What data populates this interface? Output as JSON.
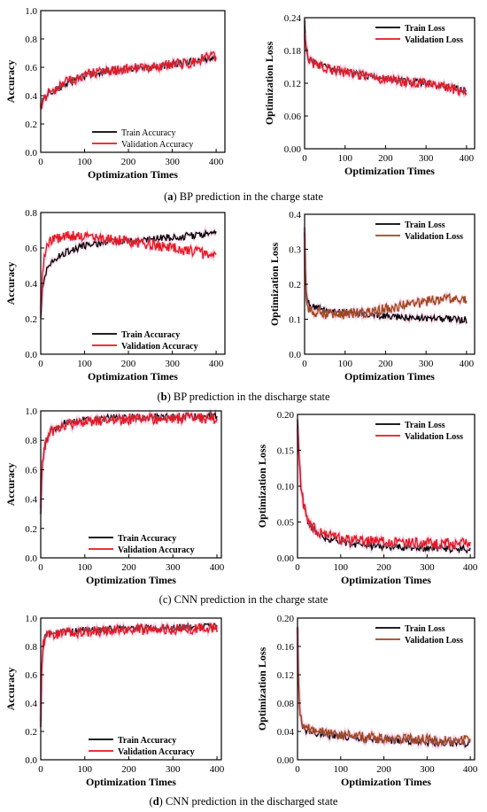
{
  "colors": {
    "train": "#000000",
    "validation_red": "#e8141c",
    "validation_brown": "#a0461a",
    "glow": "#f0a6cf"
  },
  "captions": [
    {
      "letter": "a",
      "text": " BP prediction in the charge state"
    },
    {
      "letter": "b",
      "text": " BP prediction in the discharge state"
    },
    {
      "letter": "c",
      "text": "CNN prediction in the charge state"
    },
    {
      "letter": "d",
      "text": " CNN prediction in the discharged state"
    }
  ],
  "chart_data": [
    {
      "type": "line",
      "panel": "a-left",
      "xlabel": "Optimization Times",
      "ylabel": "Accuracy",
      "xlim": [
        0,
        420
      ],
      "ylim": [
        0,
        1.0
      ],
      "xticks": [
        "0",
        "100",
        "200",
        "300",
        "400"
      ],
      "yticks": [
        "0.0",
        "0.2",
        "0.4",
        "0.6",
        "0.8",
        "1.0"
      ],
      "legend_position": "bottom-right",
      "legend_style": "mono",
      "series": [
        {
          "name": "Train Accuracy",
          "color": "#000000",
          "x": [
            0,
            5,
            20,
            40,
            60,
            80,
            100,
            140,
            180,
            220,
            260,
            300,
            340,
            380,
            400
          ],
          "y": [
            0.3,
            0.38,
            0.42,
            0.45,
            0.48,
            0.52,
            0.54,
            0.57,
            0.58,
            0.6,
            0.6,
            0.62,
            0.64,
            0.66,
            0.68
          ]
        },
        {
          "name": "Validation Accuracy",
          "color": "#e8141c",
          "x": [
            0,
            5,
            20,
            40,
            60,
            80,
            100,
            140,
            180,
            220,
            260,
            300,
            340,
            380,
            400
          ],
          "y": [
            0.32,
            0.37,
            0.43,
            0.46,
            0.5,
            0.52,
            0.55,
            0.57,
            0.58,
            0.6,
            0.6,
            0.62,
            0.63,
            0.67,
            0.68
          ]
        }
      ]
    },
    {
      "type": "line",
      "panel": "a-right",
      "xlabel": "Optimization Times",
      "ylabel": "Optimization Loss",
      "xlim": [
        0,
        420
      ],
      "ylim": [
        0,
        0.24
      ],
      "xticks": [
        "0",
        "100",
        "200",
        "300",
        "400"
      ],
      "yticks": [
        "0.00",
        "0.06",
        "0.12",
        "0.18",
        "0.24"
      ],
      "legend_position": "top-right",
      "legend_style": "bold",
      "series": [
        {
          "name": "Train Loss",
          "color": "#000000",
          "x": [
            0,
            3,
            10,
            30,
            60,
            100,
            150,
            200,
            250,
            300,
            350,
            400
          ],
          "y": [
            0.23,
            0.19,
            0.163,
            0.155,
            0.148,
            0.14,
            0.135,
            0.128,
            0.124,
            0.12,
            0.115,
            0.105
          ]
        },
        {
          "name": "Validation Loss",
          "color": "#e8141c",
          "x": [
            0,
            3,
            10,
            30,
            60,
            100,
            150,
            200,
            250,
            300,
            350,
            400
          ],
          "y": [
            0.22,
            0.18,
            0.162,
            0.152,
            0.146,
            0.139,
            0.134,
            0.127,
            0.123,
            0.119,
            0.114,
            0.1
          ]
        }
      ]
    },
    {
      "type": "line",
      "panel": "b-left",
      "xlabel": "Optimization Times",
      "ylabel": "Accuracy",
      "xlim": [
        0,
        420
      ],
      "ylim": [
        0,
        0.8
      ],
      "xticks": [
        "0",
        "100",
        "200",
        "300",
        "400"
      ],
      "yticks": [
        "0.0",
        "0.2",
        "0.4",
        "0.6",
        "0.8"
      ],
      "legend_position": "bottom-right",
      "legend_style": "bold",
      "series": [
        {
          "name": "Train Accuracy",
          "color": "#000000",
          "x": [
            0,
            5,
            15,
            30,
            60,
            100,
            150,
            200,
            250,
            300,
            350,
            400
          ],
          "y": [
            0.22,
            0.4,
            0.48,
            0.53,
            0.58,
            0.61,
            0.63,
            0.64,
            0.65,
            0.66,
            0.67,
            0.69
          ]
        },
        {
          "name": "Validation Accuracy",
          "color": "#e8141c",
          "x": [
            0,
            5,
            15,
            30,
            60,
            100,
            150,
            200,
            250,
            300,
            350,
            400
          ],
          "y": [
            0.25,
            0.5,
            0.62,
            0.65,
            0.67,
            0.66,
            0.65,
            0.64,
            0.62,
            0.6,
            0.58,
            0.55
          ]
        }
      ]
    },
    {
      "type": "line",
      "panel": "b-right",
      "xlabel": "Optimization Times",
      "ylabel": "Optimization Loss",
      "xlim": [
        0,
        420
      ],
      "ylim": [
        0,
        0.4
      ],
      "xticks": [
        "0",
        "100",
        "200",
        "300",
        "400"
      ],
      "yticks": [
        "0.0",
        "0.1",
        "0.2",
        "0.3",
        "0.4"
      ],
      "legend_position": "top-right",
      "legend_style": "bold",
      "series": [
        {
          "name": "Train Loss",
          "color": "#000000",
          "x": [
            0,
            3,
            8,
            20,
            50,
            100,
            150,
            200,
            250,
            300,
            350,
            400
          ],
          "y": [
            0.34,
            0.2,
            0.15,
            0.135,
            0.125,
            0.12,
            0.115,
            0.11,
            0.105,
            0.102,
            0.1,
            0.098
          ]
        },
        {
          "name": "Validation Loss",
          "color": "#a0461a",
          "x": [
            0,
            3,
            8,
            20,
            50,
            100,
            150,
            200,
            250,
            300,
            350,
            400
          ],
          "y": [
            0.36,
            0.18,
            0.13,
            0.12,
            0.115,
            0.115,
            0.12,
            0.13,
            0.14,
            0.15,
            0.16,
            0.16
          ]
        }
      ]
    },
    {
      "type": "line",
      "panel": "c-left",
      "xlabel": "Optimization Times",
      "ylabel": "Accuracy",
      "xlim": [
        0,
        410
      ],
      "ylim": [
        0,
        1.0
      ],
      "xticks": [
        "0",
        "100",
        "200",
        "300",
        "400"
      ],
      "yticks": [
        "0.0",
        "0.2",
        "0.4",
        "0.6",
        "0.8",
        "1.0"
      ],
      "legend_position": "bottom-right",
      "legend_style": "bold",
      "series": [
        {
          "name": "Train Accuracy",
          "color": "#000000",
          "x": [
            0,
            3,
            8,
            15,
            25,
            40,
            60,
            80,
            100,
            150,
            200,
            300,
            400
          ],
          "y": [
            0.3,
            0.6,
            0.76,
            0.83,
            0.87,
            0.9,
            0.92,
            0.93,
            0.94,
            0.95,
            0.955,
            0.96,
            0.965
          ]
        },
        {
          "name": "Validation Accuracy",
          "color": "#e8141c",
          "x": [
            0,
            3,
            8,
            15,
            25,
            40,
            60,
            80,
            100,
            150,
            200,
            300,
            400
          ],
          "y": [
            0.32,
            0.62,
            0.75,
            0.82,
            0.86,
            0.89,
            0.91,
            0.92,
            0.93,
            0.94,
            0.945,
            0.95,
            0.95
          ]
        }
      ]
    },
    {
      "type": "line",
      "panel": "c-right",
      "xlabel": "Optimization Times",
      "ylabel": "Optimization Loss",
      "xlim": [
        0,
        410
      ],
      "ylim": [
        0,
        0.2
      ],
      "xticks": [
        "0",
        "100",
        "200",
        "300",
        "400"
      ],
      "yticks": [
        "0.00",
        "0.05",
        "0.10",
        "0.15",
        "0.20"
      ],
      "legend_position": "top-right",
      "legend_style": "bold",
      "series": [
        {
          "name": "Train Loss",
          "color": "#000000",
          "x": [
            0,
            3,
            8,
            15,
            25,
            40,
            60,
            80,
            100,
            150,
            200,
            300,
            400
          ],
          "y": [
            0.19,
            0.15,
            0.1,
            0.07,
            0.05,
            0.038,
            0.03,
            0.026,
            0.022,
            0.018,
            0.016,
            0.013,
            0.012
          ]
        },
        {
          "name": "Validation Loss",
          "color": "#e8141c",
          "x": [
            0,
            3,
            8,
            15,
            25,
            40,
            60,
            80,
            100,
            150,
            200,
            300,
            400
          ],
          "y": [
            0.18,
            0.14,
            0.1,
            0.07,
            0.05,
            0.04,
            0.033,
            0.03,
            0.027,
            0.024,
            0.022,
            0.02,
            0.02
          ]
        }
      ]
    },
    {
      "type": "line",
      "panel": "d-left",
      "xlabel": "Optimization Times",
      "ylabel": "Accuracy",
      "xlim": [
        0,
        410
      ],
      "ylim": [
        0,
        1.0
      ],
      "xticks": [
        "0",
        "100",
        "200",
        "300",
        "400"
      ],
      "yticks": [
        "0.0",
        "0.2",
        "0.4",
        "0.6",
        "0.8",
        "1.0"
      ],
      "legend_position": "bottom-right",
      "legend_style": "bold",
      "series": [
        {
          "name": "Train Accuracy",
          "color": "#000000",
          "x": [
            0,
            2,
            5,
            10,
            20,
            40,
            80,
            150,
            250,
            350,
            400
          ],
          "y": [
            0.25,
            0.6,
            0.8,
            0.86,
            0.89,
            0.9,
            0.91,
            0.92,
            0.93,
            0.935,
            0.94
          ]
        },
        {
          "name": "Validation Accuracy",
          "color": "#e8141c",
          "x": [
            0,
            2,
            5,
            10,
            20,
            40,
            80,
            150,
            250,
            350,
            400
          ],
          "y": [
            0.26,
            0.62,
            0.81,
            0.86,
            0.88,
            0.89,
            0.9,
            0.91,
            0.92,
            0.925,
            0.93
          ]
        }
      ]
    },
    {
      "type": "line",
      "panel": "d-right",
      "xlabel": "Optimization Times",
      "ylabel": "Optimization Loss",
      "xlim": [
        0,
        410
      ],
      "ylim": [
        0,
        0.2
      ],
      "xticks": [
        "0",
        "100",
        "200",
        "300",
        "400"
      ],
      "yticks": [
        "0.00",
        "0.04",
        "0.08",
        "0.12",
        "0.16",
        "0.20"
      ],
      "legend_position": "top-right",
      "legend_style": "bold",
      "series": [
        {
          "name": "Train Loss",
          "color": "#000000",
          "x": [
            0,
            2,
            5,
            10,
            20,
            40,
            80,
            150,
            250,
            350,
            400
          ],
          "y": [
            0.19,
            0.12,
            0.07,
            0.05,
            0.042,
            0.038,
            0.034,
            0.03,
            0.026,
            0.024,
            0.023
          ]
        },
        {
          "name": "Validation Loss",
          "color": "#a0461a",
          "x": [
            0,
            2,
            5,
            10,
            20,
            40,
            80,
            150,
            250,
            350,
            400
          ],
          "y": [
            0.18,
            0.11,
            0.07,
            0.052,
            0.045,
            0.04,
            0.036,
            0.032,
            0.029,
            0.028,
            0.028
          ]
        }
      ]
    }
  ]
}
